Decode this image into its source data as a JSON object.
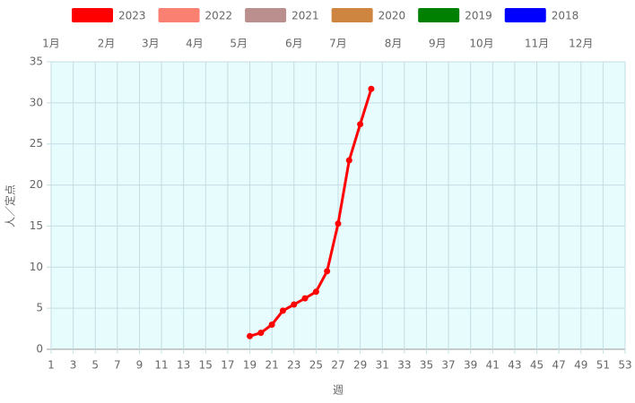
{
  "chart_data": {
    "type": "line",
    "x_label": "週",
    "y_label": "人／定点",
    "x": [
      19,
      20,
      21,
      22,
      23,
      24,
      25,
      26,
      27,
      28,
      29,
      30
    ],
    "series": [
      {
        "name": "2023",
        "color": "#ff0000",
        "values": [
          1.6,
          2.0,
          3.0,
          4.7,
          5.45,
          6.2,
          7.0,
          9.5,
          15.3,
          23.0,
          27.4,
          31.7
        ]
      },
      {
        "name": "2022",
        "color": "#fa8072",
        "values": [
          null,
          null,
          null,
          null,
          null,
          null,
          null,
          null,
          null,
          null,
          null,
          null
        ]
      },
      {
        "name": "2021",
        "color": "#bc8f8f",
        "values": [
          null,
          null,
          null,
          null,
          null,
          null,
          null,
          null,
          null,
          null,
          null,
          null
        ]
      },
      {
        "name": "2020",
        "color": "#cd853f",
        "values": [
          null,
          null,
          null,
          null,
          null,
          null,
          null,
          null,
          null,
          null,
          null,
          null
        ]
      },
      {
        "name": "2019",
        "color": "#008000",
        "values": [
          null,
          null,
          null,
          null,
          null,
          null,
          null,
          null,
          null,
          null,
          null,
          null
        ]
      },
      {
        "name": "2018",
        "color": "#0000ff",
        "values": [
          null,
          null,
          null,
          null,
          null,
          null,
          null,
          null,
          null,
          null,
          null,
          null
        ]
      }
    ],
    "xlim": [
      1,
      53
    ],
    "xticks": [
      1,
      3,
      5,
      7,
      9,
      11,
      13,
      15,
      17,
      19,
      21,
      23,
      25,
      27,
      29,
      31,
      33,
      35,
      37,
      39,
      41,
      43,
      45,
      47,
      49,
      51,
      53
    ],
    "x2ticks": [
      {
        "value": 1,
        "label": "1月"
      },
      {
        "value": 6,
        "label": "2月"
      },
      {
        "value": 10,
        "label": "3月"
      },
      {
        "value": 14,
        "label": "4月"
      },
      {
        "value": 18,
        "label": "5月"
      },
      {
        "value": 23,
        "label": "6月"
      },
      {
        "value": 27,
        "label": "7月"
      },
      {
        "value": 32,
        "label": "8月"
      },
      {
        "value": 36,
        "label": "9月"
      },
      {
        "value": 40,
        "label": "10月"
      },
      {
        "value": 45,
        "label": "11月"
      },
      {
        "value": 49,
        "label": "12月"
      }
    ],
    "ylim": [
      0,
      35
    ],
    "yticks": [
      0,
      5,
      10,
      15,
      20,
      25,
      30,
      35
    ],
    "grid": true,
    "legend": "top"
  }
}
